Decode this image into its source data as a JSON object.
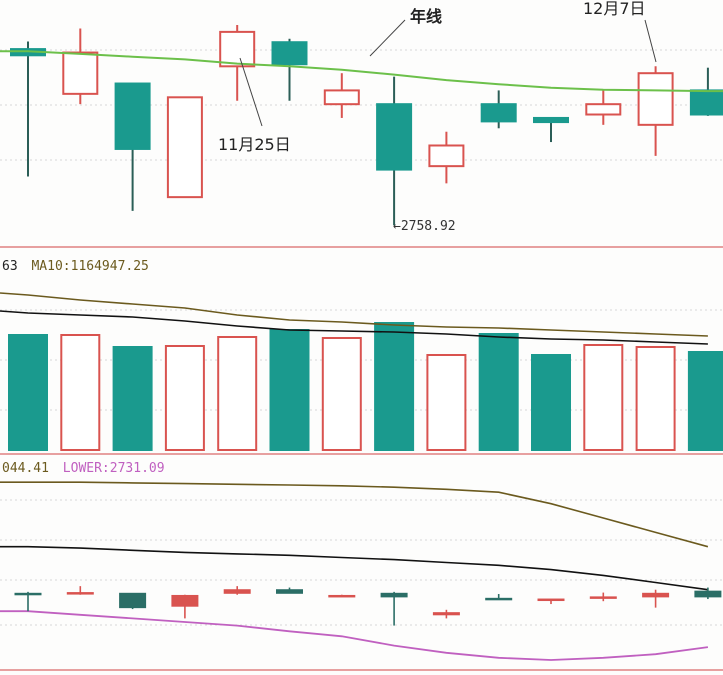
{
  "colors": {
    "up": "#d9534f",
    "down": "#1a9a8e",
    "year_line": "#6cc04a",
    "ma_dark": "#111111",
    "ma_olive": "#6b5a1e",
    "lower": "#c060c0",
    "separator": "#e7a0a0",
    "grid": "#d8d8d8"
  },
  "annotations": {
    "year_line": "年线",
    "date_a": "11月25日",
    "date_b": "12月7日",
    "low_value": "2758.92"
  },
  "volume_label": {
    "prefix": "63",
    "ma10": "MA10:1164947.25"
  },
  "boll_label": {
    "prefix": "044.41",
    "lower": "LOWER:2731.09"
  },
  "chart_data": {
    "type": "candlestick",
    "candles": [
      {
        "open": 3015,
        "close": 3006,
        "high": 3026,
        "low": 2830
      },
      {
        "open": 2950,
        "close": 3010,
        "high": 3045,
        "low": 2935
      },
      {
        "open": 2965,
        "close": 2870,
        "high": 2965,
        "low": 2780
      },
      {
        "open": 2800,
        "close": 2945,
        "high": 2945,
        "low": 2800
      },
      {
        "open": 2990,
        "close": 3040,
        "high": 3050,
        "low": 2940
      },
      {
        "open": 3025,
        "close": 2993,
        "high": 3030,
        "low": 2940
      },
      {
        "open": 2935,
        "close": 2955,
        "high": 2980,
        "low": 2915
      },
      {
        "open": 2935,
        "close": 2840,
        "high": 2975,
        "low": 2759
      },
      {
        "open": 2845,
        "close": 2875,
        "high": 2895,
        "low": 2820
      },
      {
        "open": 2935,
        "close": 2910,
        "high": 2955,
        "low": 2900
      },
      {
        "open": 2915,
        "close": 2909,
        "high": 2915,
        "low": 2880
      },
      {
        "open": 2920,
        "close": 2935,
        "high": 2955,
        "low": 2905
      },
      {
        "open": 2905,
        "close": 2980,
        "high": 2990,
        "low": 2860
      },
      {
        "open": 2955,
        "close": 2920,
        "high": 2988,
        "low": 2918
      }
    ],
    "year_line": [
      3012,
      3008,
      3004,
      3000,
      2994,
      2990,
      2985,
      2978,
      2970,
      2964,
      2959,
      2956,
      2955,
      2954
    ],
    "volume": {
      "values": [
        1150000,
        1150000,
        1030000,
        1040000,
        1130000,
        1200000,
        1120000,
        1270000,
        950000,
        1160000,
        950000,
        1050000,
        1030000,
        980000
      ],
      "ma_dark": [
        1370000,
        1350000,
        1330000,
        1290000,
        1240000,
        1200000,
        1190000,
        1180000,
        1160000,
        1130000,
        1110000,
        1100000,
        1080000,
        1060000
      ],
      "ma_olive": [
        1550000,
        1500000,
        1460000,
        1420000,
        1350000,
        1300000,
        1280000,
        1250000,
        1230000,
        1220000,
        1200000,
        1180000,
        1160000,
        1140000
      ]
    },
    "boll": {
      "upper": [
        3050,
        3050,
        3049,
        3048,
        3047,
        3046,
        3045,
        3043,
        3040,
        3036,
        3020,
        3000,
        2980,
        2960
      ],
      "mid": [
        2960,
        2958,
        2955,
        2952,
        2950,
        2948,
        2945,
        2942,
        2938,
        2934,
        2928,
        2920,
        2910,
        2900
      ],
      "lower": [
        2870,
        2865,
        2860,
        2855,
        2850,
        2842,
        2835,
        2822,
        2812,
        2805,
        2802,
        2805,
        2810,
        2820
      ]
    },
    "boll_candles": [
      {
        "open": 2895,
        "close": 2893,
        "high": 2897,
        "low": 2870
      },
      {
        "open": 2895,
        "close": 2896,
        "high": 2905,
        "low": 2893
      },
      {
        "open": 2895,
        "close": 2875,
        "high": 2895,
        "low": 2873
      },
      {
        "open": 2877,
        "close": 2892,
        "high": 2893,
        "low": 2860
      },
      {
        "open": 2895,
        "close": 2900,
        "high": 2905,
        "low": 2893
      },
      {
        "open": 2900,
        "close": 2895,
        "high": 2903,
        "low": 2895
      },
      {
        "open": 2891,
        "close": 2892,
        "high": 2893,
        "low": 2890
      },
      {
        "open": 2895,
        "close": 2890,
        "high": 2897,
        "low": 2850
      },
      {
        "open": 2865,
        "close": 2868,
        "high": 2872,
        "low": 2860
      },
      {
        "open": 2888,
        "close": 2887,
        "high": 2894,
        "low": 2886
      },
      {
        "open": 2887,
        "close": 2887,
        "high": 2887,
        "low": 2880
      },
      {
        "open": 2888,
        "close": 2890,
        "high": 2896,
        "low": 2884
      },
      {
        "open": 2890,
        "close": 2895,
        "high": 2900,
        "low": 2875
      },
      {
        "open": 2898,
        "close": 2890,
        "high": 2903,
        "low": 2887
      }
    ]
  }
}
